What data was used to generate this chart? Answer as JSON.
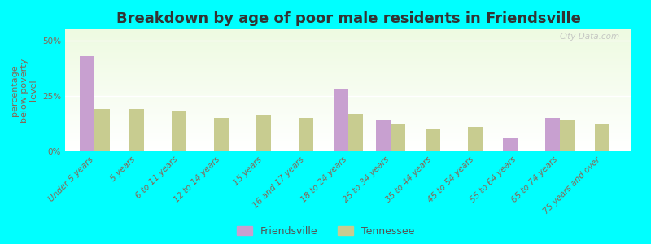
{
  "title": "Breakdown by age of poor male residents in Friendsville",
  "ylabel": "percentage\nbelow poverty\nlevel",
  "categories": [
    "Under 5 years",
    "5 years",
    "6 to 11 years",
    "12 to 14 years",
    "15 years",
    "16 and 17 years",
    "18 to 24 years",
    "25 to 34 years",
    "35 to 44 years",
    "45 to 54 years",
    "55 to 64 years",
    "65 to 74 years",
    "75 years and over"
  ],
  "friendsville": [
    43.0,
    0,
    0,
    0,
    0,
    0,
    28.0,
    14.0,
    0,
    0,
    6.0,
    15.0,
    0
  ],
  "tennessee": [
    19.0,
    19.0,
    18.0,
    15.0,
    16.0,
    15.0,
    17.0,
    12.0,
    10.0,
    11.0,
    0,
    14.0,
    12.0
  ],
  "friendsville_color": "#c8a0d0",
  "tennessee_color": "#c8cc90",
  "background_color": "#00ffff",
  "ylim": [
    0,
    55
  ],
  "yticks": [
    0,
    25,
    50
  ],
  "ytick_labels": [
    "0%",
    "25%",
    "50%"
  ],
  "bar_width": 0.35,
  "title_fontsize": 13,
  "axis_label_fontsize": 8,
  "tick_fontsize": 7.5,
  "legend_labels": [
    "Friendsville",
    "Tennessee"
  ],
  "legend_marker_color_f": "#d4a0d8",
  "legend_marker_color_t": "#c8b866"
}
